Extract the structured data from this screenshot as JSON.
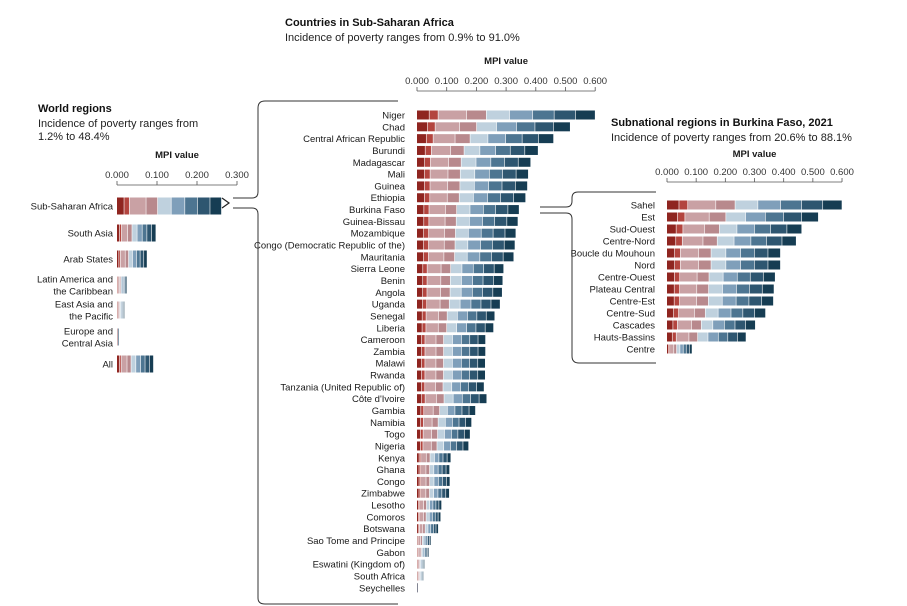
{
  "colors": {
    "segments": [
      "#8f2520",
      "#b3453f",
      "#c9a1a4",
      "#b8898d",
      "#bfd1de",
      "#7f9fba",
      "#4d7591",
      "#2e5670",
      "#163d53"
    ],
    "axis": "#555555",
    "connector": "#333333"
  },
  "chart_data": [
    {
      "type": "bar",
      "orientation": "horizontal",
      "stacked": true,
      "title": "World regions",
      "subtitle": "Incidence of poverty ranges from 1.2% to 48.4%",
      "xlabel": "MPI value",
      "xlim": [
        0,
        0.3
      ],
      "xticks": [
        "0.000",
        "0.100",
        "0.200",
        "0.300"
      ],
      "categories": [
        "Sub-Saharan Africa",
        "South Asia",
        "Arab States",
        "Latin America and the Caribbean",
        "East Asia and the Pacific",
        "Europe and Central Asia",
        "All"
      ],
      "category_lines": [
        [
          "Sub-Saharan Africa"
        ],
        [
          "South Asia"
        ],
        [
          "Arab States"
        ],
        [
          "Latin America and",
          "the Caribbean"
        ],
        [
          "East Asia and",
          "the Pacific"
        ],
        [
          "Europe and",
          "Central Asia"
        ],
        [
          "All"
        ]
      ],
      "values": [
        0.262,
        0.098,
        0.076,
        0.026,
        0.02,
        0.005,
        0.092
      ]
    },
    {
      "type": "bar",
      "orientation": "horizontal",
      "stacked": true,
      "title": "Countries in Sub-Saharan Africa",
      "subtitle": "Incidence of poverty ranges from 0.9% to 91.0%",
      "xlabel": "MPI value",
      "xlim": [
        0,
        0.6
      ],
      "xticks": [
        "0.000",
        "0.100",
        "0.200",
        "0.300",
        "0.400",
        "0.500",
        "0.600"
      ],
      "categories": [
        "Niger",
        "Chad",
        "Central African Republic",
        "Burundi",
        "Madagascar",
        "Mali",
        "Guinea",
        "Ethiopia",
        "Burkina Faso",
        "Guinea-Bissau",
        "Mozambique",
        "Congo (Democratic Republic of the)",
        "Mauritania",
        "Sierra Leone",
        "Benin",
        "Angola",
        "Uganda",
        "Senegal",
        "Liberia",
        "Cameroon",
        "Zambia",
        "Malawi",
        "Rwanda",
        "Tanzania (United Republic of)",
        "Côte d'Ivoire",
        "Gambia",
        "Namibia",
        "Togo",
        "Nigeria",
        "Kenya",
        "Ghana",
        "Congo",
        "Zimbabwe",
        "Lesotho",
        "Comoros",
        "Botswana",
        "Sao Tome and Principe",
        "Gabon",
        "Eswatini (Kingdom of)",
        "South Africa",
        "Seychelles"
      ],
      "values": [
        0.601,
        0.517,
        0.461,
        0.409,
        0.384,
        0.376,
        0.373,
        0.367,
        0.345,
        0.341,
        0.334,
        0.331,
        0.327,
        0.293,
        0.29,
        0.288,
        0.281,
        0.263,
        0.259,
        0.232,
        0.232,
        0.231,
        0.231,
        0.227,
        0.236,
        0.198,
        0.185,
        0.18,
        0.175,
        0.115,
        0.111,
        0.112,
        0.11,
        0.084,
        0.081,
        0.073,
        0.048,
        0.041,
        0.028,
        0.025,
        0.003
      ]
    },
    {
      "type": "bar",
      "orientation": "horizontal",
      "stacked": true,
      "title": "Subnational regions in Burkina Faso, 2021",
      "subtitle": "Incidence of poverty ranges from 20.6% to 88.1%",
      "xlabel": "MPI value",
      "xlim": [
        0,
        0.6
      ],
      "xticks": [
        "0.000",
        "0.100",
        "0.200",
        "0.300",
        "0.400",
        "0.500",
        "0.600"
      ],
      "categories": [
        "Sahel",
        "Est",
        "Sud-Ouest",
        "Centre-Nord",
        "Boucle du Mouhoun",
        "Nord",
        "Centre-Ouest",
        "Plateau Central",
        "Centre-Est",
        "Centre-Sud",
        "Cascades",
        "Hauts-Bassins",
        "Centre"
      ],
      "values": [
        0.601,
        0.52,
        0.463,
        0.444,
        0.39,
        0.39,
        0.372,
        0.368,
        0.366,
        0.339,
        0.304,
        0.272,
        0.087
      ]
    }
  ]
}
